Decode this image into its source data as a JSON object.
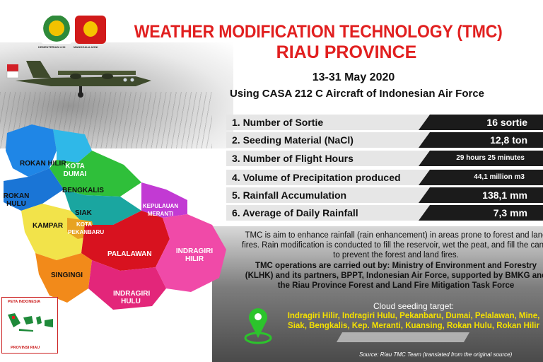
{
  "header": {
    "logo_left_caption": "KEMENTERIAN LHK",
    "logo_right_caption": "MANGGALA AGNI",
    "title": "WEATHER MODIFICATION TECHNOLOGY (TMC)",
    "subtitle": "RIAU PROVINCE",
    "dates": "13-31 May 2020",
    "aircraft": "Using CASA 212 C Aircraft of Indonesian Air Force"
  },
  "stats": [
    {
      "label": "1. Number of Sortie",
      "value": "16 sortie"
    },
    {
      "label": "2. Seeding Material (NaCl)",
      "value": "12,8 ton"
    },
    {
      "label": "3. Number of Flight Hours",
      "value": "29 hours 25 minutes"
    },
    {
      "label": "4. Volume of Precipitation produced",
      "value": "44,1 million m3"
    },
    {
      "label": "5. Rainfall Accumulation",
      "value": "138,1 mm"
    },
    {
      "label": "6. Average of Daily Rainfall",
      "value": "7,3 mm"
    }
  ],
  "description": "TMC is aim to enhance rainfall (rain enhancement) in areas prone to forest and land fires. Rain modification is conducted to fill the reservoir, wet the peat, and fill the canal to prevent the forest and land fires.",
  "operations": "TMC operations are carried out by: Ministry of Environment and Forestry (KLHK) and its partners, BPPT, Indonesian Air Force, supported by BMKG and the Riau Province Forest and Land Fire Mitigation Task Force",
  "target": {
    "title": "Cloud seeding target:",
    "list": "Indragiri Hilir, Indragiri Hulu, Pekanbaru, Dumai, Pelalawan, Mine, Siak, Bengkalis, Kep. Meranti, Kuansing, Rokan Hulu, Rokan Hilir"
  },
  "source": "Source: Riau TMC Team (translated from the original source)",
  "map": {
    "regions": [
      {
        "name": "ROKAN HILIR",
        "color": "#1f86e6"
      },
      {
        "name": "KOTA DUMAI",
        "color": "#2fb8e8"
      },
      {
        "name": "BENGKALIS",
        "color": "#2fbf3a"
      },
      {
        "name": "ROKAN HULU",
        "color": "#1a75d6"
      },
      {
        "name": "SIAK",
        "color": "#1aa6a0"
      },
      {
        "name": "KEPULAUAN MERANTI",
        "color": "#c23ad3"
      },
      {
        "name": "KAMPAR",
        "color": "#f2e34a"
      },
      {
        "name": "KOTA PEKANBARU",
        "color": "#e8a321"
      },
      {
        "name": "PALALAWAN",
        "color": "#d8121f"
      },
      {
        "name": "INDRAGIRI HILIR",
        "color": "#f04aa8"
      },
      {
        "name": "SINGINGI",
        "color": "#f28a1a"
      },
      {
        "name": "INDRAGIRI HULU",
        "color": "#e3267a"
      }
    ],
    "inset_top": "PETA INDONESIA",
    "inset_bottom": "PROVINSI RIAU"
  }
}
